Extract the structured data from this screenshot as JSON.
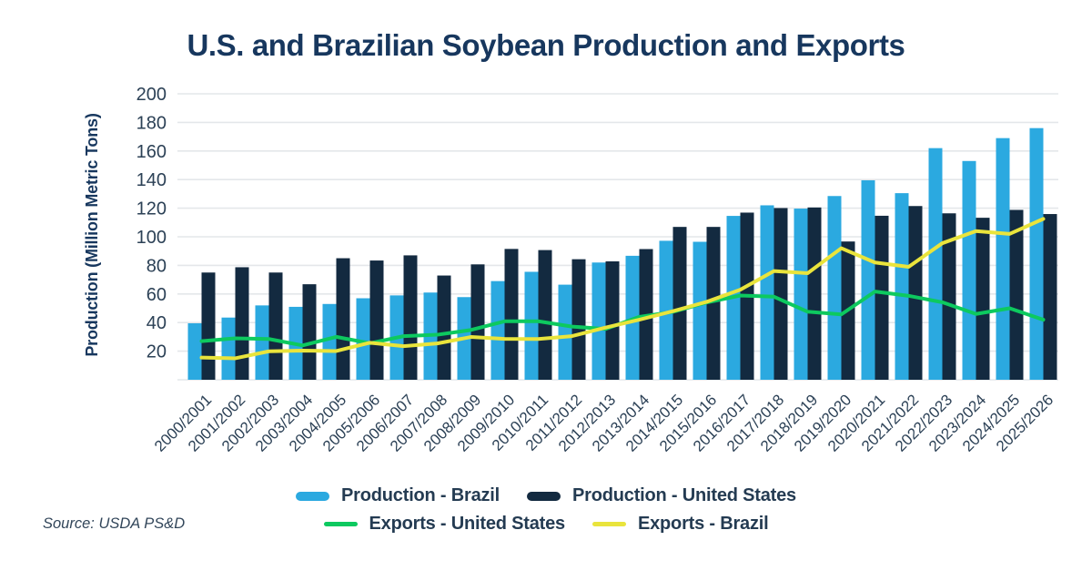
{
  "source": "Source: USDA PS&D",
  "colors": {
    "title_text": "#17375E",
    "axis_text": "#2C4156",
    "legend_text": "#243B52",
    "gridline": "#E4E7EA",
    "background": "#FFFFFF"
  },
  "chart_data": {
    "type": "bar",
    "subtype": "grouped bars with overlaid line series",
    "title": "U.S. and Brazilian Soybean Production and Exports",
    "xlabel": "",
    "ylabel": "Production (Million Metric Tons)",
    "ylim": [
      0,
      200
    ],
    "ytick_step": 20,
    "yticks": [
      20,
      40,
      60,
      80,
      100,
      120,
      140,
      160,
      180,
      200
    ],
    "grid": true,
    "legend_position": "bottom",
    "categories": [
      "2000/2001",
      "2001/2002",
      "2002/2003",
      "2003/2004",
      "2004/2005",
      "2005/2006",
      "2006/2007",
      "2007/2008",
      "2008/2009",
      "2009/2010",
      "2010/2011",
      "2011/2012",
      "2012/2013",
      "2013/2014",
      "2014/2015",
      "2015/2016",
      "2016/2017",
      "2017/2018",
      "2018/2019",
      "2019/2020",
      "2020/2021",
      "2021/2022",
      "2022/2023",
      "2023/2024",
      "2024/2025",
      "2025/2026"
    ],
    "series": [
      {
        "name": "Production - Brazil",
        "style": "bar",
        "color": "#2BA9E0",
        "values": [
          39.5,
          43.5,
          52,
          51,
          53,
          57,
          59,
          61,
          57.8,
          69,
          75.5,
          66.5,
          82,
          86.7,
          97.2,
          96.5,
          114.6,
          122,
          119.7,
          128.5,
          139.5,
          130.5,
          162,
          153,
          169,
          176
        ]
      },
      {
        "name": "Production - United States",
        "style": "bar",
        "color": "#132A40",
        "values": [
          75,
          78.7,
          75,
          66.8,
          85,
          83.4,
          87,
          72.9,
          80.7,
          91.5,
          90.7,
          84.3,
          82.8,
          91.4,
          106.9,
          106.9,
          116.9,
          120.1,
          120.5,
          96.7,
          114.7,
          121.5,
          116.4,
          113.3,
          118.8,
          115.9
        ]
      },
      {
        "name": "Exports - United States",
        "style": "line",
        "color": "#0DC95F",
        "values": [
          27,
          29,
          28.5,
          24,
          30,
          25.5,
          30.5,
          31.5,
          34.8,
          40.9,
          40.9,
          37.2,
          35.5,
          44,
          47.5,
          54,
          58.9,
          58.1,
          47.6,
          45.7,
          61.7,
          58.7,
          54.2,
          46,
          50,
          42
        ]
      },
      {
        "name": "Exports - Brazil",
        "style": "line",
        "color": "#E9E43C",
        "values": [
          15.5,
          15,
          19.9,
          20.4,
          20.1,
          25.9,
          23.5,
          25.4,
          29.9,
          28.6,
          28.5,
          30.5,
          36.5,
          42,
          48,
          54.5,
          63,
          76,
          74.5,
          92,
          82,
          79,
          95.5,
          104,
          102,
          112.5
        ]
      }
    ]
  }
}
